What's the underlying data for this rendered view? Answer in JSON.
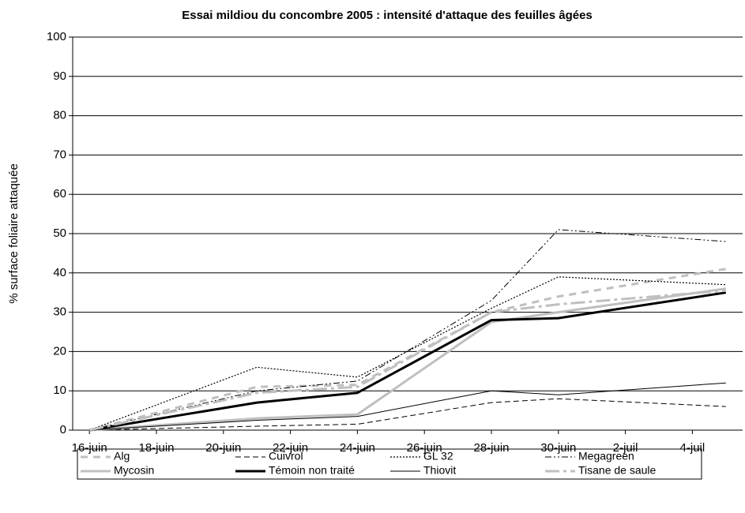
{
  "chart_data": {
    "type": "line",
    "title": "Essai mildiou du concombre 2005 : intensité d'attaque des feuilles âgées",
    "y_label": "% surface foliaire attaquée",
    "x": [
      "16-juin",
      "21-juin",
      "24-juin",
      "28-juin",
      "30-juin",
      "5-juil"
    ],
    "xticks": [
      "16-juin",
      "18-juin",
      "20-juin",
      "22-juin",
      "24-juin",
      "26-juin",
      "28-juin",
      "30-juin",
      "2-juil",
      "4-juil"
    ],
    "ylim": [
      0,
      100
    ],
    "yticks": [
      0,
      10,
      20,
      30,
      40,
      50,
      60,
      70,
      80,
      90,
      100
    ],
    "grid": true,
    "series": [
      {
        "name": "Alg",
        "color": "#bfbfbf",
        "dash": "9 7",
        "width": 3,
        "values": [
          0,
          11,
          11.5,
          30,
          34,
          41
        ]
      },
      {
        "name": "Cuivrol",
        "color": "#000000",
        "dash": "7 4",
        "width": 1,
        "values": [
          0,
          1,
          1.5,
          7,
          8,
          6
        ]
      },
      {
        "name": "GL 32",
        "color": "#000000",
        "dash": "2 2",
        "width": 1.2,
        "values": [
          0,
          16,
          13.5,
          31,
          39,
          37
        ]
      },
      {
        "name": "Megagreen",
        "color": "#000000",
        "dash": "8 3 2 3 2 3",
        "width": 1,
        "values": [
          0,
          10,
          12.5,
          33,
          51,
          48
        ]
      },
      {
        "name": "Mycosin",
        "color": "#bfbfbf",
        "dash": "",
        "width": 3,
        "values": [
          0,
          3,
          4,
          27.5,
          30,
          36
        ]
      },
      {
        "name": "Témoin non traité",
        "color": "#000000",
        "dash": "",
        "width": 3,
        "values": [
          0,
          7,
          9.5,
          28,
          28.5,
          35
        ]
      },
      {
        "name": "Thiovit",
        "color": "#000000",
        "dash": "",
        "width": 1,
        "values": [
          0,
          2.5,
          3.5,
          10,
          9,
          12
        ]
      },
      {
        "name": "Tisane de saule",
        "color": "#bfbfbf",
        "dash": "18 5 4 5",
        "width": 3,
        "values": [
          0,
          9.5,
          11,
          30,
          32,
          35.5
        ]
      }
    ]
  }
}
